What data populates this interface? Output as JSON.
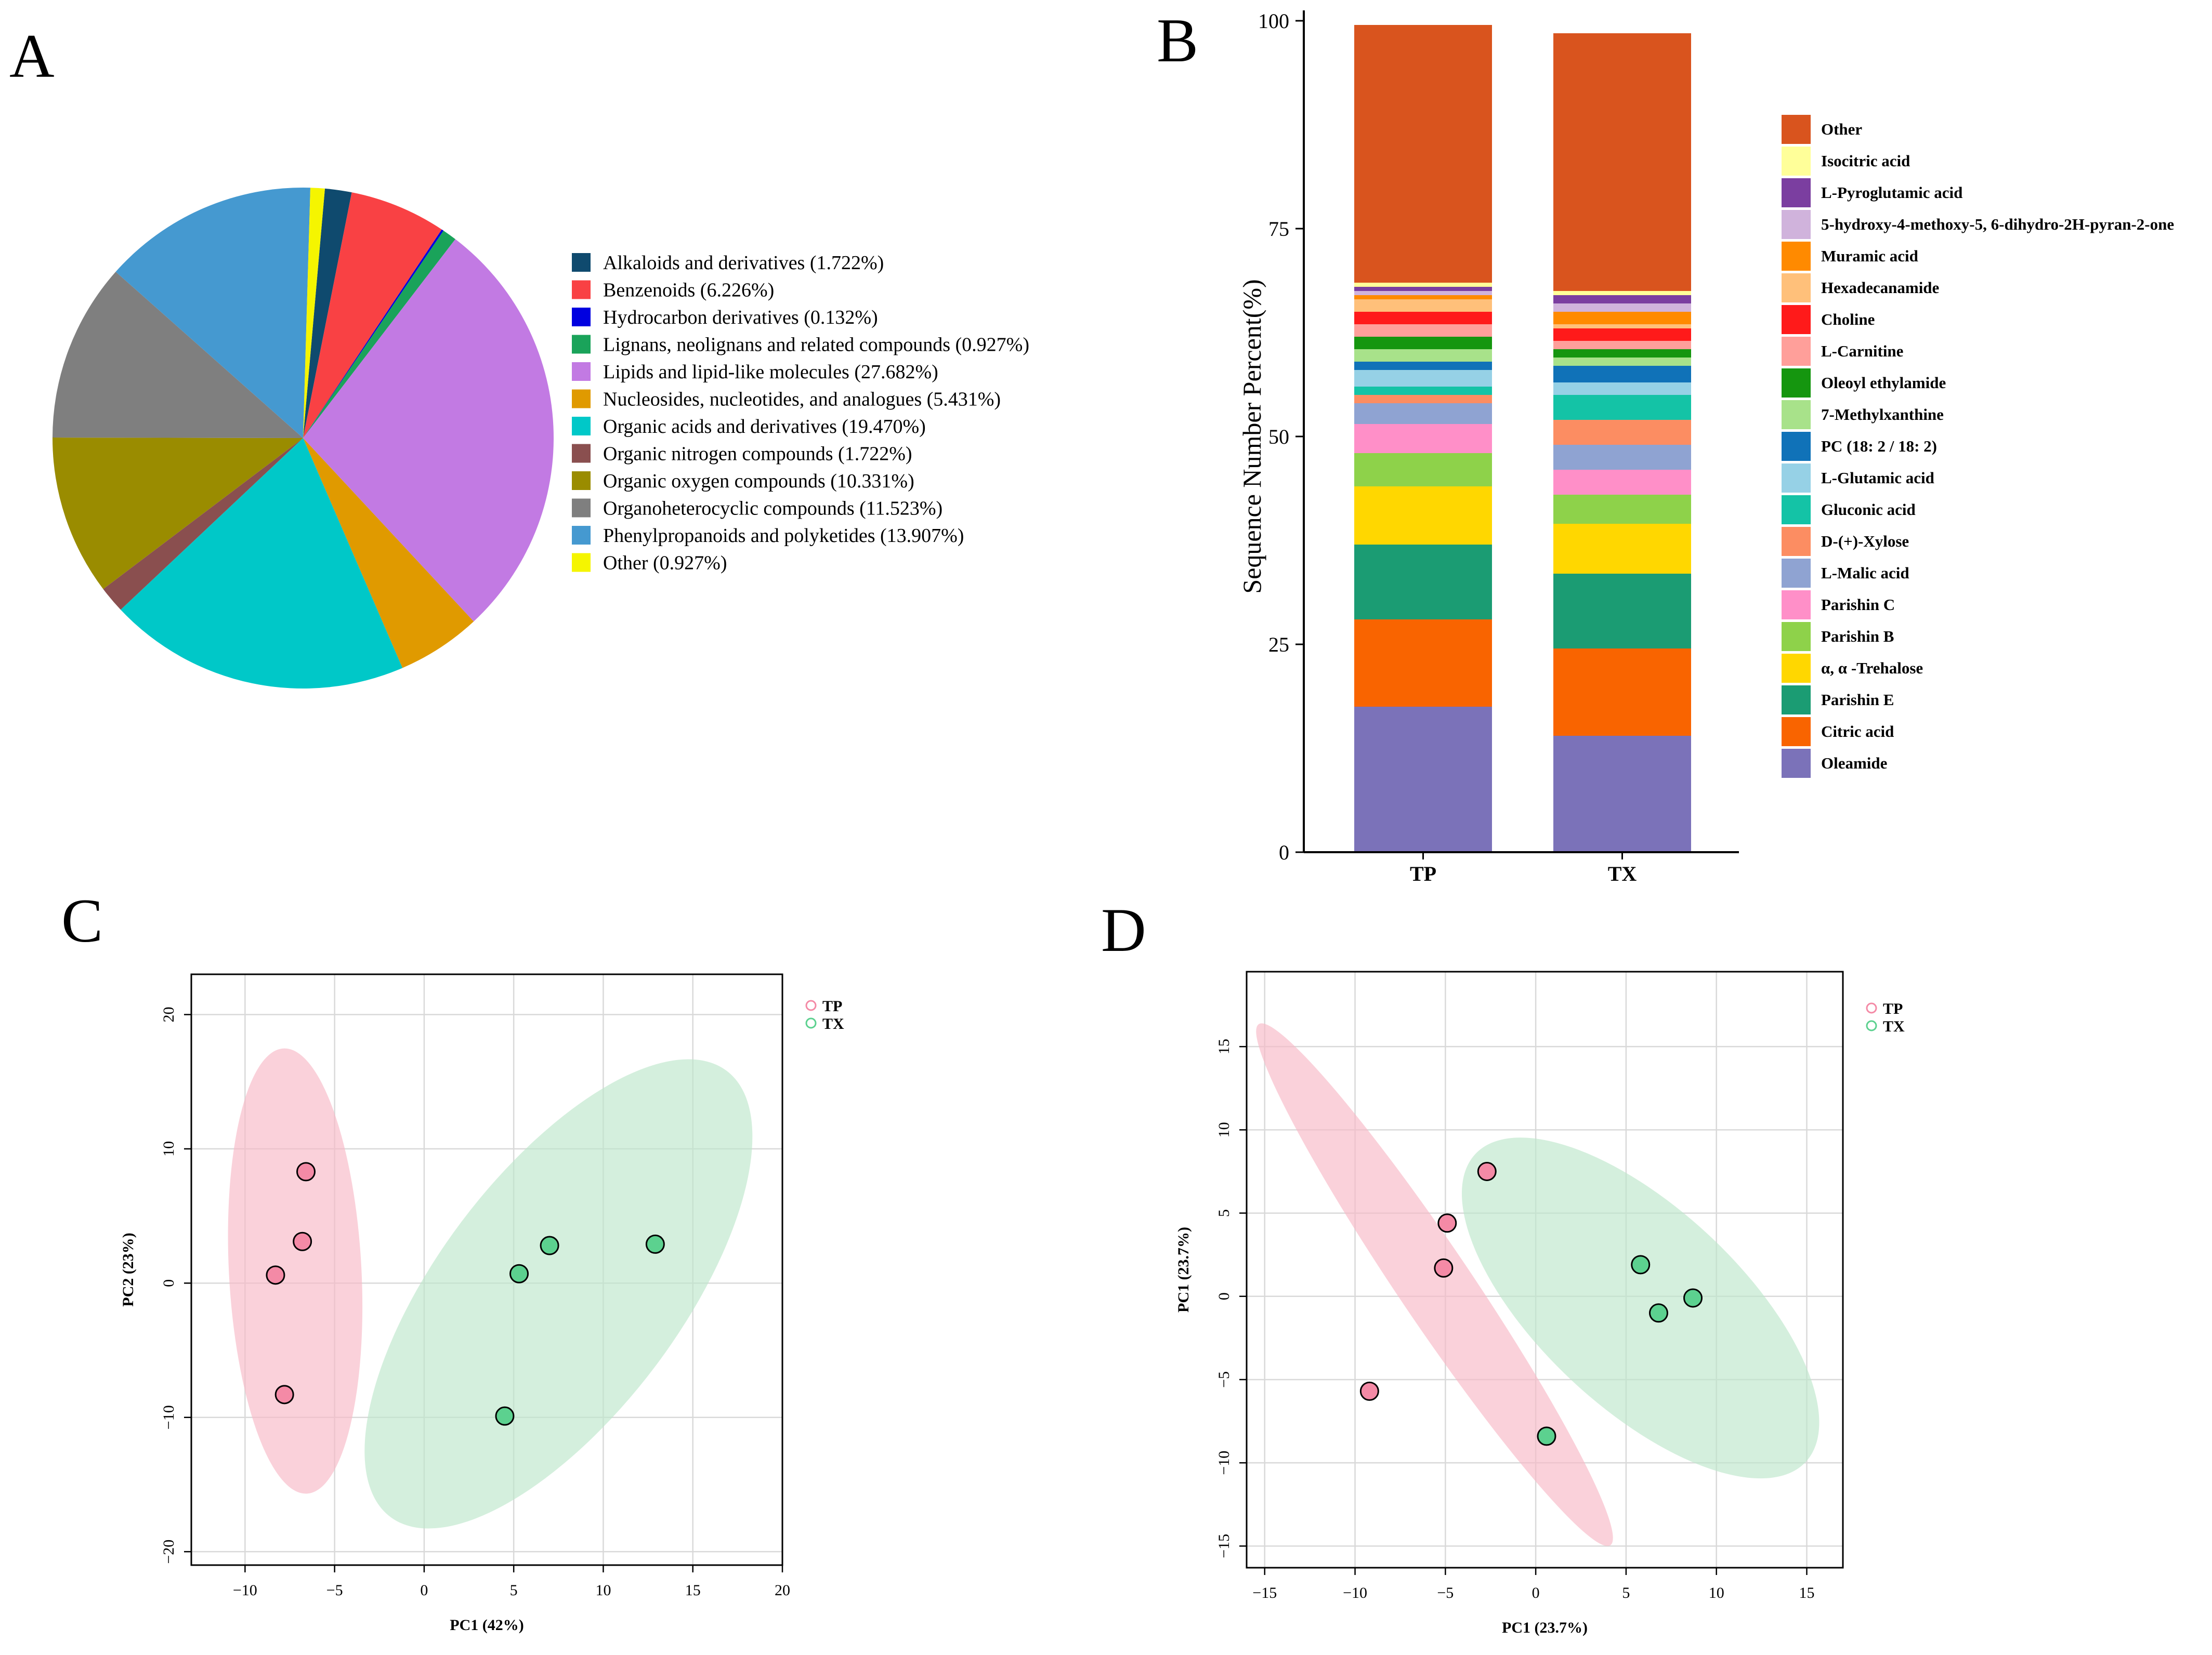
{
  "chart_data": [
    {
      "panel": "A",
      "type": "pie",
      "slices": [
        {
          "label": "Alkaloids and derivatives (1.722%)",
          "value": 1.722,
          "color": "#0f4a6e"
        },
        {
          "label": "Benzenoids (6.226%)",
          "value": 6.226,
          "color": "#f94144"
        },
        {
          "label": "Hydrocarbon derivatives (0.132%)",
          "value": 0.132,
          "color": "#0000e0"
        },
        {
          "label": "Lignans, neolignans and related compounds (0.927%)",
          "value": 0.927,
          "color": "#1aa35a"
        },
        {
          "label": "Lipids and lipid-like molecules (27.682%)",
          "value": 27.682,
          "color": "#c27ae3"
        },
        {
          "label": "Nucleosides, nucleotides, and analogues (5.431%)",
          "value": 5.431,
          "color": "#e09a00"
        },
        {
          "label": "Organic acids and derivatives (19.470%)",
          "value": 19.47,
          "color": "#00c8c8"
        },
        {
          "label": "Organic nitrogen compounds (1.722%)",
          "value": 1.722,
          "color": "#8a4f4f"
        },
        {
          "label": "Organic oxygen compounds (10.331%)",
          "value": 10.331,
          "color": "#9a8c00"
        },
        {
          "label": "Organoheterocyclic compounds (11.523%)",
          "value": 11.523,
          "color": "#7f7f7f"
        },
        {
          "label": "Phenylpropanoids and polyketides (13.907%)",
          "value": 13.907,
          "color": "#4599d0"
        },
        {
          "label": "Other (0.927%)",
          "value": 0.927,
          "color": "#f5f500"
        }
      ]
    },
    {
      "panel": "B",
      "type": "bar",
      "stacked": true,
      "categories": [
        "TP",
        "TX"
      ],
      "ylabel": "Sequence Number Percent(%)",
      "ylim": [
        0,
        100
      ],
      "yticks": [
        "0",
        "25",
        "50",
        "75",
        "100"
      ],
      "series": [
        {
          "name": "Oleamide",
          "color": "#7b72b9",
          "values": [
            17.5,
            14.0
          ]
        },
        {
          "name": "Citric acid",
          "color": "#f96400",
          "values": [
            10.5,
            10.5
          ]
        },
        {
          "name": "Parishin E",
          "color": "#1b9c73",
          "values": [
            9.0,
            9.0
          ]
        },
        {
          "name": "α, α -Trehalose",
          "color": "#ffd700",
          "values": [
            7.0,
            6.0
          ]
        },
        {
          "name": "Parishin B",
          "color": "#8ed24a",
          "values": [
            4.0,
            3.5
          ]
        },
        {
          "name": "Parishin C",
          "color": "#ff8fc8",
          "values": [
            3.5,
            3.0
          ]
        },
        {
          "name": "L-Malic acid",
          "color": "#8fa3d2",
          "values": [
            2.5,
            3.0
          ]
        },
        {
          "name": "D-(+)-Xylose",
          "color": "#fc8d62",
          "values": [
            1.0,
            3.0
          ]
        },
        {
          "name": "Gluconic acid",
          "color": "#14c3a6",
          "values": [
            1.0,
            3.0
          ]
        },
        {
          "name": "L-Glutamic acid",
          "color": "#96d1e6",
          "values": [
            2.0,
            1.5
          ]
        },
        {
          "name": "PC (18: 2 / 18: 2)",
          "color": "#1072b8",
          "values": [
            1.0,
            2.0
          ]
        },
        {
          "name": "7-Methylxanthine",
          "color": "#a8e28a",
          "values": [
            1.5,
            1.0
          ]
        },
        {
          "name": "Oleoyl ethylamide",
          "color": "#15960f",
          "values": [
            1.5,
            1.0
          ]
        },
        {
          "name": "L-Carnitine",
          "color": "#ff9f9a",
          "values": [
            1.5,
            1.0
          ]
        },
        {
          "name": "Choline",
          "color": "#ff1a1a",
          "values": [
            1.5,
            1.5
          ]
        },
        {
          "name": "Hexadecanamide",
          "color": "#ffc07a",
          "values": [
            1.5,
            0.5
          ]
        },
        {
          "name": "Muramic acid",
          "color": "#ff8a00",
          "values": [
            0.5,
            1.5
          ]
        },
        {
          "name": "5-hydroxy-4-methoxy-5, 6-dihydro-2H-pyran-2-one",
          "color": "#d0b3dc",
          "values": [
            0.5,
            1.0
          ]
        },
        {
          "name": "L-Pyroglutamic acid",
          "color": "#7b3ea0",
          "values": [
            0.5,
            1.0
          ]
        },
        {
          "name": "Isocitric acid",
          "color": "#ffff99",
          "values": [
            0.5,
            0.5
          ]
        },
        {
          "name": "Other",
          "color": "#d9541e",
          "values": [
            31.0,
            31.0
          ]
        }
      ]
    },
    {
      "panel": "C",
      "type": "scatter",
      "xlabel": "PC1 (42%)",
      "ylabel": "PC2 (23%)",
      "xlim": [
        -13,
        20
      ],
      "ylim": [
        -21,
        23
      ],
      "xticks": [
        -10,
        -5,
        0,
        5,
        10,
        15,
        20
      ],
      "yticks": [
        -20,
        -10,
        0,
        10,
        20
      ],
      "xtick_labels": [
        "−10",
        "−5",
        "0",
        "5",
        "10",
        "15",
        "20"
      ],
      "ytick_labels": [
        "−20",
        "−10",
        "0",
        "10",
        "20"
      ],
      "series": [
        {
          "name": "TP",
          "color": "#f48aa6",
          "ellipse_color": "#f7b9c6",
          "ellipse": {
            "cx": -7.2,
            "cy": 0.9,
            "rx": 3.7,
            "ry": 16.6,
            "angle": -3
          },
          "points": [
            [
              -6.6,
              8.3
            ],
            [
              -6.8,
              3.1
            ],
            [
              -8.3,
              0.6
            ],
            [
              -7.8,
              -8.3
            ]
          ]
        },
        {
          "name": "TX",
          "color": "#5cd18f",
          "ellipse_color": "#bde6cb",
          "ellipse": {
            "cx": 7.5,
            "cy": -0.8,
            "rx": 15.6,
            "ry": 9.0,
            "angle": -53
          },
          "points": [
            [
              5.3,
              0.7
            ],
            [
              7.0,
              2.8
            ],
            [
              12.9,
              2.9
            ],
            [
              4.5,
              -9.9
            ]
          ]
        }
      ]
    },
    {
      "panel": "D",
      "type": "scatter",
      "xlabel": "PC1 (23.7%)",
      "ylabel": "PC1 (23.7%)",
      "xlim": [
        -16,
        17
      ],
      "ylim": [
        -16.3,
        19.5
      ],
      "xticks": [
        -15,
        -10,
        -5,
        0,
        5,
        10,
        15
      ],
      "yticks": [
        -15,
        -10,
        -5,
        0,
        5,
        10,
        15
      ],
      "xtick_labels": [
        "−15",
        "−10",
        "−5",
        "0",
        "5",
        "10",
        "15"
      ],
      "ytick_labels": [
        "−15",
        "−10",
        "−5",
        "0",
        "5",
        "10",
        "15"
      ],
      "series": [
        {
          "name": "TP",
          "color": "#f48aa6",
          "ellipse_color": "#f7b9c6",
          "ellipse": {
            "cx": -5.6,
            "cy": 0.7,
            "rx": 17.4,
            "ry": 2.2,
            "angle": 56
          },
          "points": [
            [
              -2.7,
              7.5
            ],
            [
              -4.9,
              4.4
            ],
            [
              -5.1,
              1.7
            ],
            [
              -9.2,
              -5.7
            ]
          ]
        },
        {
          "name": "TX",
          "color": "#5cd18f",
          "ellipse_color": "#bde6cb",
          "ellipse": {
            "cx": 5.8,
            "cy": -0.7,
            "rx": 12.5,
            "ry": 6.0,
            "angle": 43
          },
          "points": [
            [
              5.8,
              1.9
            ],
            [
              8.7,
              -0.1
            ],
            [
              6.8,
              -1.0
            ],
            [
              0.6,
              -8.4
            ]
          ]
        }
      ]
    }
  ],
  "panels": {
    "A": {
      "letter": "A"
    },
    "B": {
      "letter": "B"
    },
    "C": {
      "letter": "C"
    },
    "D": {
      "letter": "D"
    }
  }
}
